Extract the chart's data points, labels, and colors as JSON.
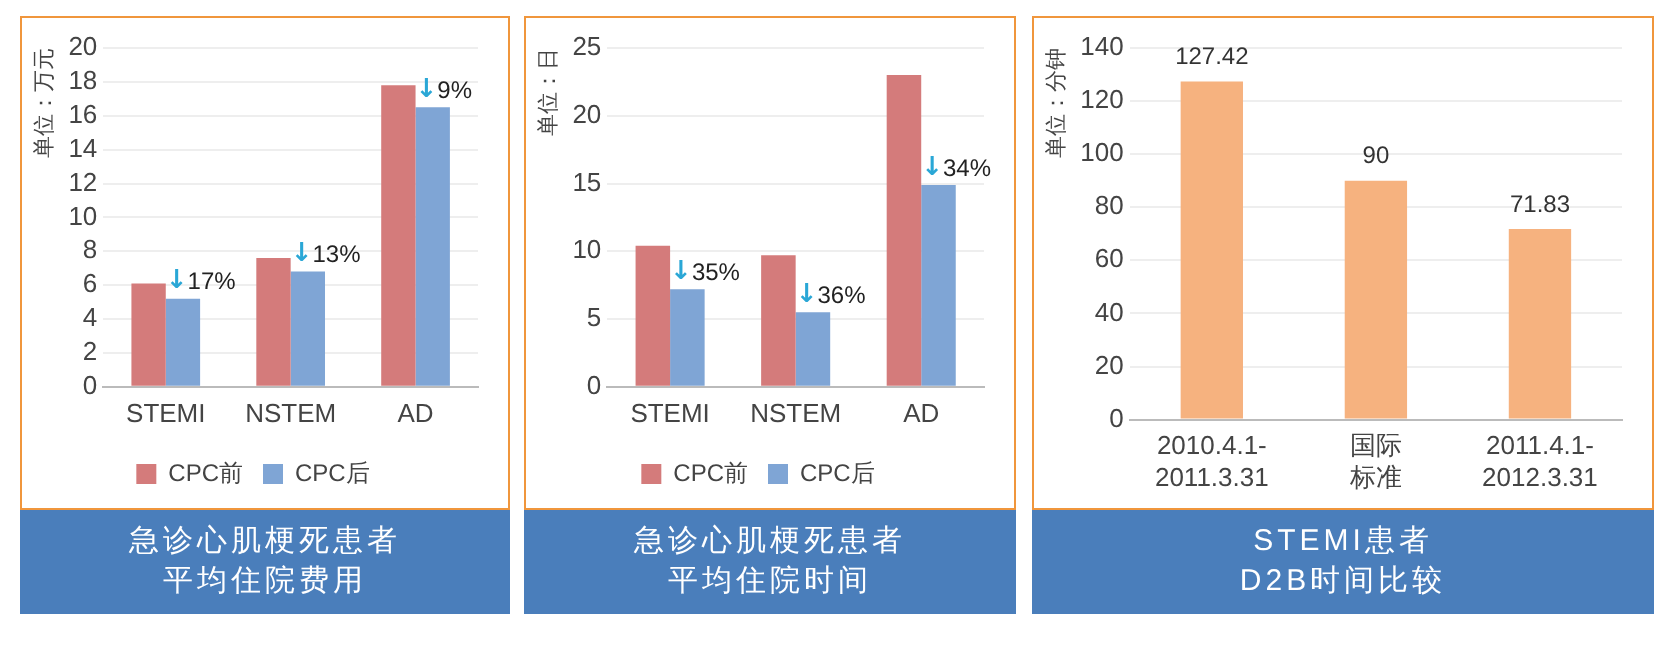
{
  "chart_data": [
    {
      "type": "bar",
      "title": "急诊心肌梗死患者平均住院费用",
      "ylabel": "单位：万元",
      "categories": [
        "STEMI",
        "NSTEM",
        "AD"
      ],
      "series": [
        {
          "name": "CPC前",
          "color": "#d47b7b",
          "values": [
            6.1,
            7.6,
            17.8
          ]
        },
        {
          "name": "CPC后",
          "color": "#7fa5d5",
          "values": [
            5.2,
            6.8,
            16.5
          ]
        }
      ],
      "ylim": [
        0,
        20
      ],
      "yticks": [
        0,
        2,
        4,
        6,
        8,
        10,
        12,
        14,
        16,
        18,
        20
      ],
      "grid": "y",
      "legend": "bottom",
      "annotations": [
        {
          "text": "↓17%",
          "x": "STEMI",
          "y": 5.2
        },
        {
          "text": "↓13%",
          "x": "NSTEM",
          "y": 6.8
        },
        {
          "text": "↓9%",
          "x": "AD",
          "y": 16.5
        }
      ]
    },
    {
      "type": "bar",
      "title": "急诊心肌梗死患者平均住院时间",
      "ylabel": "单位：日",
      "categories": [
        "STEMI",
        "NSTEM",
        "AD"
      ],
      "series": [
        {
          "name": "CPC前",
          "color": "#d47b7b",
          "values": [
            10.4,
            9.7,
            23
          ]
        },
        {
          "name": "CPC后",
          "color": "#7fa5d5",
          "values": [
            7.2,
            5.5,
            14.9
          ]
        }
      ],
      "ylim": [
        0,
        25
      ],
      "yticks": [
        0,
        5,
        10,
        15,
        20,
        25
      ],
      "grid": "y",
      "legend": "bottom",
      "annotations": [
        {
          "text": "↓35%",
          "x": "STEMI",
          "y": 7.2
        },
        {
          "text": "↓36%",
          "x": "NSTEM",
          "y": 5.5
        },
        {
          "text": "↓34%",
          "x": "AD",
          "y": 14.9
        }
      ]
    },
    {
      "type": "bar",
      "title": "STEMI患者D2B时间比较",
      "ylabel": "单位：分钟",
      "categories": [
        "2010.4.1-2011.3.31",
        "国际标准",
        "2011.4.1-2012.3.31"
      ],
      "series": [
        {
          "color": "#f6b27f",
          "values": [
            127.42,
            90,
            71.83
          ]
        }
      ],
      "ylim": [
        0,
        140
      ],
      "yticks": [
        0,
        20,
        40,
        60,
        80,
        100,
        120,
        140
      ],
      "grid": "y",
      "data_labels": true
    }
  ]
}
